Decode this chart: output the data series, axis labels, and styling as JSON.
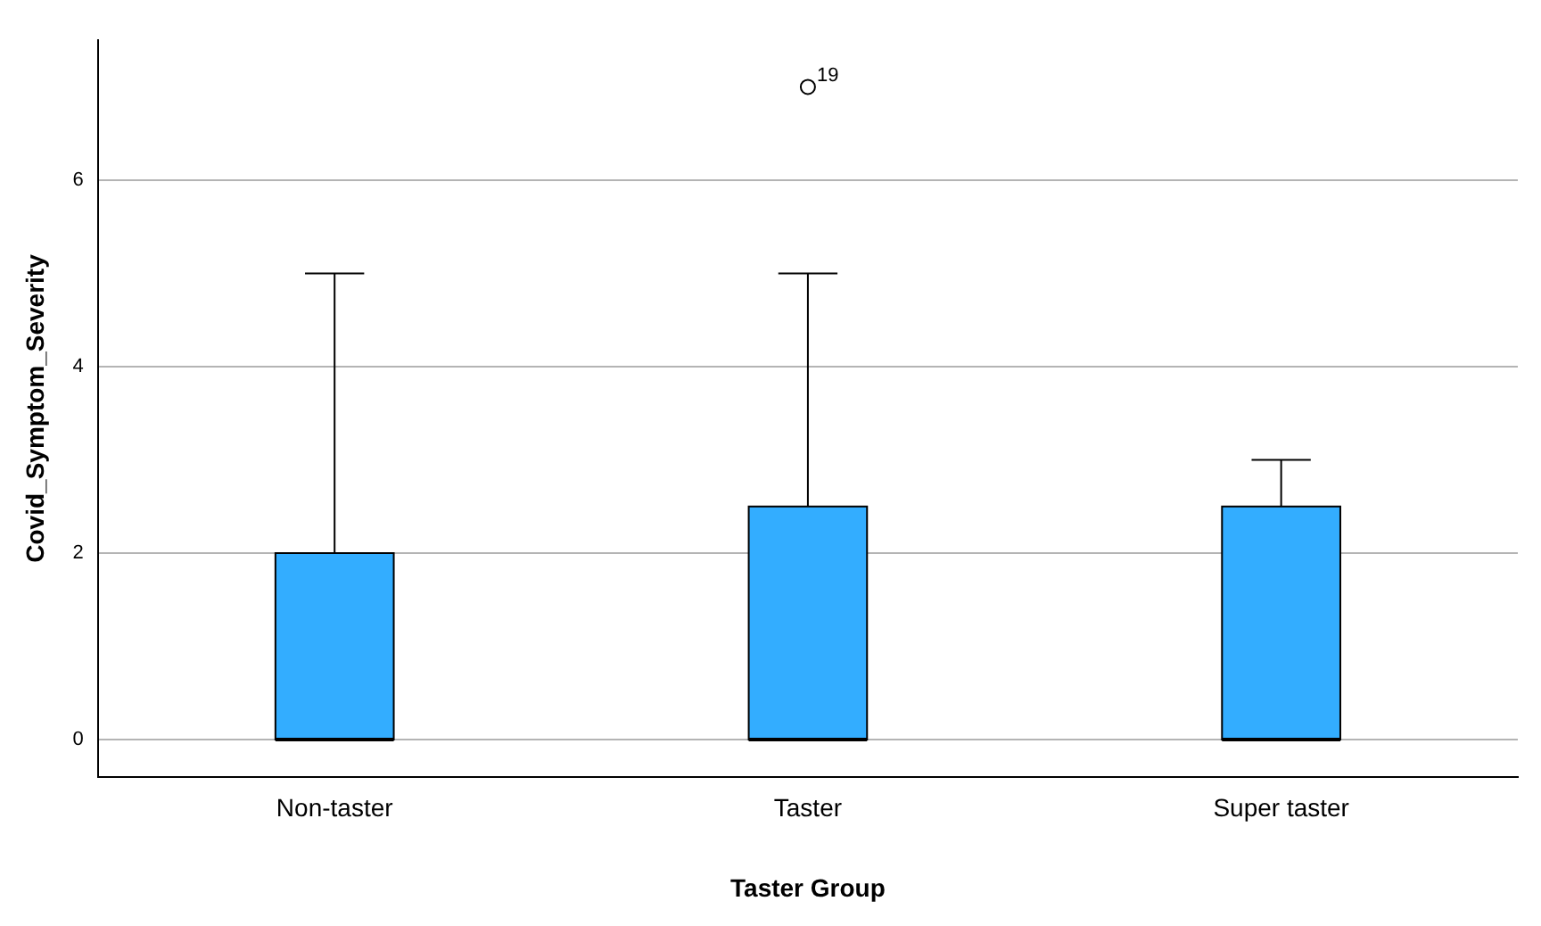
{
  "chart_data": {
    "type": "box",
    "xlabel": "Taster Group",
    "ylabel": "Covid_Symptom_Severity",
    "categories": [
      "Non-taster",
      "Taster",
      "Super taster"
    ],
    "boxes": [
      {
        "low": 0,
        "q1": 0,
        "median": 0,
        "q3": 2,
        "high": 5
      },
      {
        "low": 0,
        "q1": 0,
        "median": 0,
        "q3": 2.5,
        "high": 5,
        "outliers": [
          7
        ]
      },
      {
        "low": 0,
        "q1": 0,
        "median": 0,
        "q3": 2.5,
        "high": 3
      }
    ],
    "color": "#33adff",
    "ylim": [
      -0.4,
      7.5
    ],
    "yticks": [
      0,
      2,
      4,
      6
    ],
    "grid": "y",
    "legend": false,
    "annotations": [
      "19"
    ]
  }
}
